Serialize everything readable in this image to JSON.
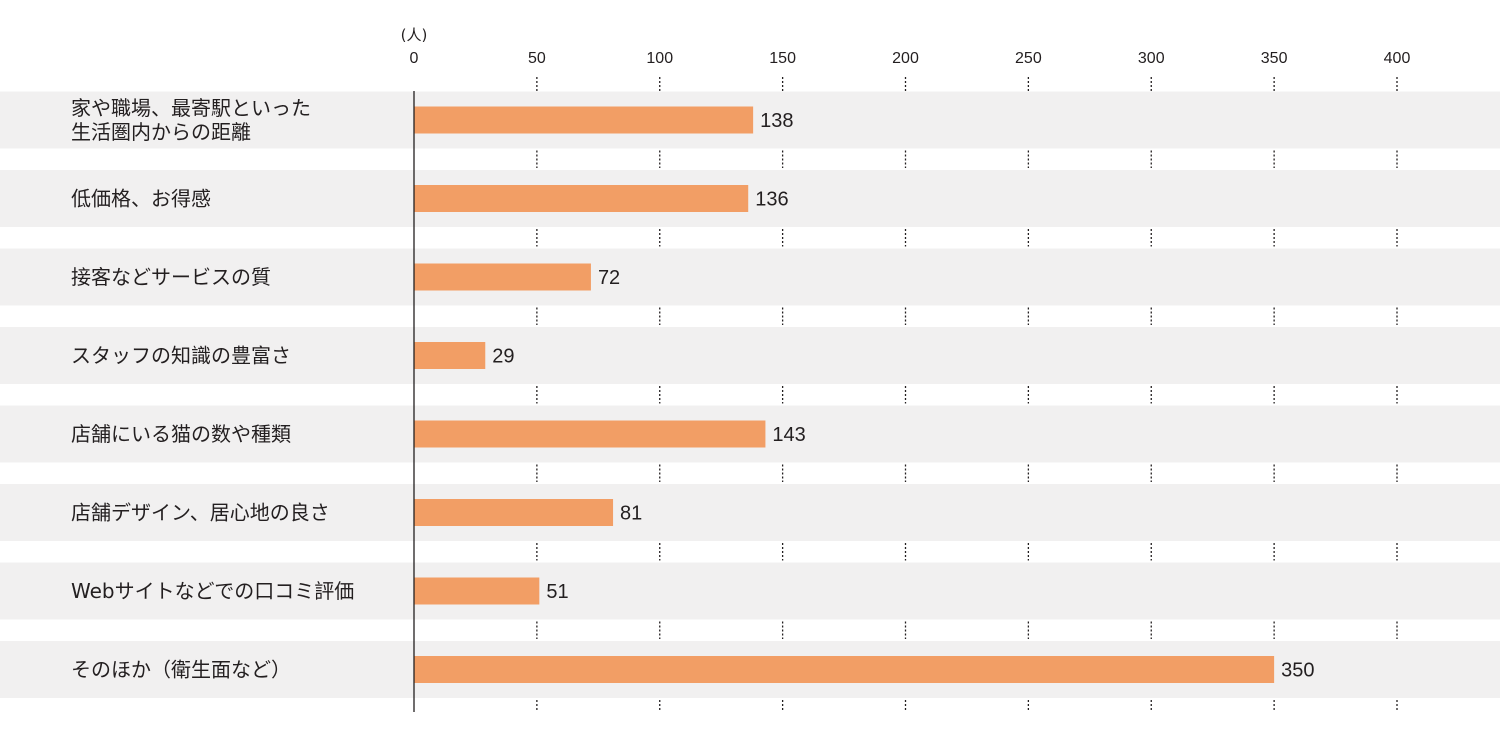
{
  "chart_data": {
    "type": "bar",
    "orientation": "horizontal",
    "unit": "(人)",
    "categories": [
      [
        "家や職場、最寄駅といった",
        "生活圏内からの距離"
      ],
      [
        "低価格、お得感"
      ],
      [
        "接客などサービスの質"
      ],
      [
        "スタッフの知識の豊富さ"
      ],
      [
        "店舗にいる猫の数や種類"
      ],
      [
        "店舗デザイン、居心地の良さ"
      ],
      [
        "Webサイトなどでの口コミ評価"
      ],
      [
        "そのほか（衛生面など）"
      ]
    ],
    "values": [
      138,
      136,
      72,
      29,
      143,
      81,
      51,
      350
    ],
    "xlim": [
      0,
      400
    ],
    "ticks": [
      0,
      50,
      100,
      150,
      200,
      250,
      300,
      350,
      400
    ],
    "grid": true,
    "colors": {
      "bar": "#f29e65",
      "band": "#f1f0f0",
      "axis": "#231f20",
      "grid": "#231f20",
      "text": "#231f20"
    }
  }
}
